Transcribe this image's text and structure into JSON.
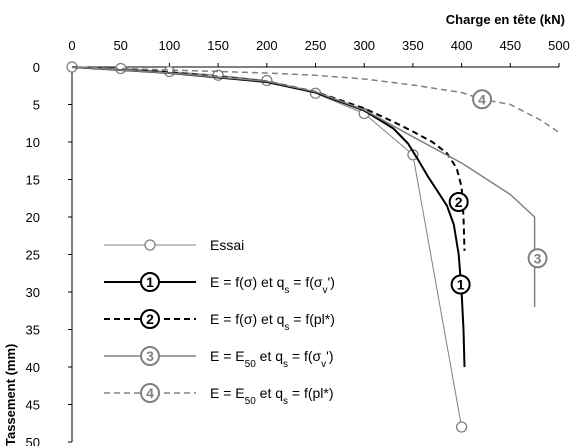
{
  "chart_data": {
    "type": "line",
    "xlabel": "Charge en tête (kN)",
    "ylabel": "Tassement (mm)",
    "xlim": [
      0,
      500
    ],
    "ylim": [
      0,
      50
    ],
    "x_axis_position": "top",
    "y_axis_inverted": true,
    "grid": false,
    "legend_position": "bottom-left",
    "x_ticks": [
      "0",
      "50",
      "100",
      "150",
      "200",
      "250",
      "300",
      "350",
      "400",
      "450",
      "500"
    ],
    "y_ticks": [
      "0",
      "5",
      "10",
      "15",
      "20",
      "25",
      "30",
      "35",
      "40",
      "45",
      "50"
    ],
    "series": [
      {
        "id": "essai",
        "name": "Essai",
        "legend_parts": [
          {
            "t": "Essai"
          }
        ],
        "color": "#808080",
        "dash": "solid",
        "marker": "circle",
        "x": [
          0,
          50,
          100,
          150,
          200,
          250,
          300,
          350,
          400
        ],
        "y": [
          0,
          0.2,
          0.6,
          1.1,
          1.8,
          3.5,
          6.2,
          11.7,
          48
        ]
      },
      {
        "id": "s1",
        "badge": "1",
        "name": "E = f(σ) et qs = f(σv')",
        "legend_parts": [
          {
            "t": "E = f(σ) et q"
          },
          {
            "t": "s",
            "sub": true
          },
          {
            "t": " = f(σ"
          },
          {
            "t": "v",
            "sub": true
          },
          {
            "t": "')"
          }
        ],
        "color": "#000000",
        "dash": "solid",
        "label_at": [
          399,
          29
        ],
        "x": [
          0,
          100,
          200,
          250,
          300,
          330,
          345,
          355,
          365,
          375,
          385,
          392,
          397,
          400,
          402,
          403
        ],
        "y": [
          0,
          0.8,
          2.0,
          3.4,
          5.8,
          8.2,
          10.2,
          12.3,
          14.5,
          16.5,
          18.5,
          21.0,
          25.0,
          30.0,
          35.0,
          40.0
        ]
      },
      {
        "id": "s2",
        "badge": "2",
        "name": "E = f(σ) et qs = f(pl*)",
        "legend_parts": [
          {
            "t": "E = f(σ) et q"
          },
          {
            "t": "s",
            "sub": true
          },
          {
            "t": " = f(pl*)"
          }
        ],
        "color": "#000000",
        "dash": "dashed",
        "label_at": [
          397,
          18
        ],
        "x": [
          0,
          100,
          200,
          250,
          300,
          330,
          350,
          370,
          385,
          395,
          400,
          402,
          403
        ],
        "y": [
          0,
          0.7,
          1.9,
          3.3,
          5.5,
          7.3,
          8.6,
          10.0,
          11.5,
          13.5,
          16.0,
          20.0,
          24.5
        ]
      },
      {
        "id": "s3",
        "badge": "3",
        "name": "E = E50 et qs = f(σv')",
        "legend_parts": [
          {
            "t": "E = E"
          },
          {
            "t": "50",
            "sub": true
          },
          {
            "t": " et q"
          },
          {
            "t": "s",
            "sub": true
          },
          {
            "t": " = f(σ"
          },
          {
            "t": "v",
            "sub": true
          },
          {
            "t": "')"
          }
        ],
        "color": "#808080",
        "dash": "solid",
        "label_at": [
          478,
          25.5
        ],
        "x": [
          0,
          100,
          200,
          250,
          300,
          350,
          400,
          450,
          475,
          475
        ],
        "y": [
          0,
          0.8,
          1.9,
          3.3,
          5.7,
          9.3,
          12.8,
          17.0,
          20.0,
          32.0
        ]
      },
      {
        "id": "s4",
        "badge": "4",
        "name": "E = E50 et qs = f(pl*)",
        "legend_parts": [
          {
            "t": "E = E"
          },
          {
            "t": "50",
            "sub": true
          },
          {
            "t": " et q"
          },
          {
            "t": "s",
            "sub": true
          },
          {
            "t": " = f(pl*)"
          }
        ],
        "color": "#808080",
        "dash": "dashed",
        "label_at": [
          421,
          4.3
        ],
        "x": [
          0,
          100,
          200,
          250,
          300,
          350,
          400,
          421,
          450,
          480,
          500
        ],
        "y": [
          0,
          0.4,
          0.8,
          1.1,
          1.6,
          2.4,
          3.4,
          4.3,
          5.0,
          7.0,
          8.7
        ]
      }
    ]
  }
}
